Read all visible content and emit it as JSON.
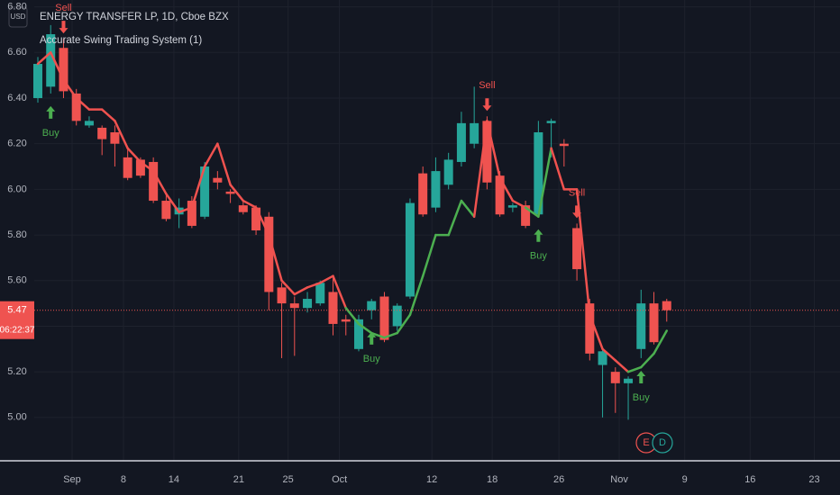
{
  "header": {
    "symbol": "ENERGY TRANSFER LP, 1D, Cboe BZX",
    "indicator": "Accurate Swing Trading System (1)",
    "currency": "USD"
  },
  "chart_data": {
    "type": "candlestick",
    "open": [
      6.4,
      6.45,
      6.62,
      6.42,
      6.28,
      6.27,
      6.25,
      6.14,
      6.13,
      6.12,
      5.95,
      5.89,
      5.95,
      5.88,
      6.05,
      5.99,
      5.93,
      5.92,
      5.88,
      5.57,
      5.5,
      5.48,
      5.5,
      5.55,
      5.43,
      5.3,
      5.47,
      5.53,
      5.4,
      5.53,
      6.07,
      5.92,
      6.02,
      6.12,
      6.2,
      6.3,
      6.06,
      5.92,
      5.93,
      5.89,
      6.29,
      6.2,
      5.83,
      5.5,
      5.23,
      5.2,
      5.15,
      5.3,
      5.5,
      5.51
    ],
    "high": [
      6.58,
      6.72,
      6.66,
      6.44,
      6.32,
      6.28,
      6.28,
      6.18,
      6.14,
      6.14,
      5.98,
      5.96,
      5.97,
      6.12,
      6.08,
      6.0,
      5.95,
      5.93,
      5.9,
      5.59,
      5.53,
      5.55,
      5.6,
      5.62,
      5.45,
      5.45,
      5.52,
      5.55,
      5.5,
      5.96,
      6.1,
      6.14,
      6.16,
      6.34,
      6.45,
      6.32,
      6.08,
      5.94,
      5.95,
      6.3,
      6.31,
      6.22,
      5.85,
      5.52,
      5.31,
      5.22,
      5.18,
      5.56,
      5.55,
      5.52
    ],
    "low": [
      6.38,
      6.42,
      6.4,
      6.28,
      6.27,
      6.15,
      6.1,
      6.04,
      6.05,
      5.94,
      5.86,
      5.83,
      5.83,
      5.87,
      6.0,
      5.94,
      5.89,
      5.8,
      5.47,
      5.26,
      5.27,
      5.46,
      5.49,
      5.36,
      5.36,
      5.29,
      5.43,
      5.33,
      5.38,
      5.52,
      5.88,
      5.9,
      6.0,
      6.1,
      6.18,
      6.0,
      5.88,
      5.9,
      5.83,
      5.88,
      6.14,
      6.1,
      5.6,
      5.25,
      5.0,
      5.02,
      4.99,
      5.26,
      5.32,
      5.42
    ],
    "close": [
      6.55,
      6.68,
      6.43,
      6.3,
      6.3,
      6.22,
      6.2,
      6.05,
      6.06,
      5.95,
      5.87,
      5.92,
      5.84,
      6.1,
      6.03,
      5.98,
      5.9,
      5.82,
      5.55,
      5.5,
      5.48,
      5.52,
      5.59,
      5.41,
      5.42,
      5.43,
      5.51,
      5.34,
      5.49,
      5.94,
      5.89,
      6.08,
      6.13,
      6.29,
      6.29,
      6.03,
      5.89,
      5.93,
      5.84,
      6.25,
      6.3,
      6.19,
      5.65,
      5.28,
      5.29,
      5.15,
      5.17,
      5.5,
      5.33,
      5.47
    ],
    "up_color": "#26a69a",
    "down_color": "#ef5350",
    "signals": [
      null,
      "Buy",
      "Sell",
      null,
      null,
      null,
      null,
      null,
      null,
      null,
      null,
      null,
      null,
      null,
      null,
      null,
      null,
      null,
      null,
      null,
      null,
      null,
      null,
      null,
      null,
      null,
      "Buy",
      null,
      null,
      null,
      null,
      null,
      null,
      null,
      null,
      "Sell",
      null,
      null,
      null,
      "Buy",
      null,
      null,
      "Sell",
      null,
      null,
      null,
      null,
      "Buy",
      null,
      null
    ],
    "buy_color": "#4caf50",
    "sell_color": "#f0524f",
    "swing_line": {
      "values": [
        6.55,
        6.6,
        6.48,
        6.4,
        6.35,
        6.35,
        6.3,
        6.18,
        6.12,
        6.08,
        5.98,
        5.9,
        5.92,
        6.1,
        6.2,
        6.02,
        5.95,
        5.92,
        5.8,
        5.6,
        5.54,
        5.57,
        5.59,
        5.62,
        5.48,
        5.41,
        5.37,
        5.35,
        5.37,
        5.45,
        5.62,
        5.8,
        5.8,
        5.95,
        5.88,
        6.3,
        6.05,
        5.95,
        5.92,
        5.88,
        6.18,
        6.0,
        6.0,
        5.45,
        5.3,
        5.25,
        5.2,
        5.22,
        5.28,
        5.38
      ],
      "segment_colors": [
        "#f0524f",
        "#f0524f",
        "#f0524f",
        "#f0524f",
        "#f0524f",
        "#f0524f",
        "#f0524f",
        "#f0524f",
        "#f0524f",
        "#f0524f",
        "#f0524f",
        "#f0524f",
        "#f0524f",
        "#f0524f",
        "#f0524f",
        "#f0524f",
        "#f0524f",
        "#f0524f",
        "#f0524f",
        "#f0524f",
        "#f0524f",
        "#f0524f",
        "#f0524f",
        "#f0524f",
        "#4caf50",
        "#4caf50",
        "#4caf50",
        "#4caf50",
        "#4caf50",
        "#4caf50",
        "#4caf50",
        "#4caf50",
        "#4caf50",
        "#4caf50",
        "#f0524f",
        "#f0524f",
        "#f0524f",
        "#f0524f",
        "#4caf50",
        "#4caf50",
        "#f0524f",
        "#f0524f",
        "#f0524f",
        "#f0524f",
        "#f0524f",
        "#f0524f",
        "#4caf50",
        "#4caf50",
        "#4caf50"
      ]
    },
    "last_price": 5.47,
    "countdown": "06:22:37",
    "ylim": [
      4.81,
      6.83
    ],
    "yticks": [
      {
        "value": 5,
        "label": "5.00"
      },
      {
        "value": 5.2,
        "label": "5.20"
      },
      {
        "value": 5.4,
        "label": "5.40"
      },
      {
        "value": 5.6,
        "label": "5.60"
      },
      {
        "value": 5.8,
        "label": "5.80"
      },
      {
        "value": 6,
        "label": "6.00"
      },
      {
        "value": 6.2,
        "label": "6.20"
      },
      {
        "value": 6.4,
        "label": "6.40"
      },
      {
        "value": 6.6,
        "label": "6.60"
      },
      {
        "value": 6.8,
        "label": "6.80"
      }
    ],
    "xlim": [
      -0.28,
      62.5
    ],
    "xticks": [
      {
        "value": 2.67,
        "label": "Sep"
      },
      {
        "value": 6.67,
        "label": "8"
      },
      {
        "value": 10.6,
        "label": "14"
      },
      {
        "value": 15.65,
        "label": "21"
      },
      {
        "value": 19.5,
        "label": "25"
      },
      {
        "value": 23.5,
        "label": "Oct"
      },
      {
        "value": 30.7,
        "label": "12"
      },
      {
        "value": 35.4,
        "label": "18"
      },
      {
        "value": 40.6,
        "label": "26"
      },
      {
        "value": 45.3,
        "label": "Nov"
      },
      {
        "value": 50.4,
        "label": "9"
      },
      {
        "value": 55.5,
        "label": "16"
      },
      {
        "value": 60.5,
        "label": "23"
      }
    ],
    "grid": true,
    "markers": [
      "E",
      "D"
    ]
  }
}
